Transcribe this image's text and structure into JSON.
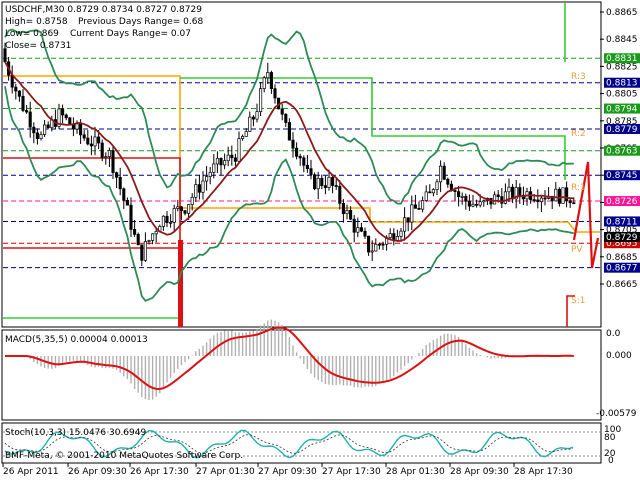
{
  "header": {
    "symbol_line": "USDCHF,M30  0.8729 0.8734 0.8727 0.8729",
    "high_line": "High= 0.8758",
    "prev_range_line": "Previous Days Range= 0.68",
    "low_line": "Low= 0.869",
    "cur_range_line": "Current Days Range= 0.07",
    "close_line": "Close= 0.8731"
  },
  "price_axis": {
    "ticks": [
      "0.8865",
      "0.8845",
      "0.8825",
      "0.8805",
      "0.8785",
      "0.8765",
      "0.8745",
      "0.8725",
      "0.8705",
      "0.8685",
      "0.8665"
    ],
    "current_price": "0.8729"
  },
  "level_tags": [
    {
      "label": "0.8831",
      "price": 0.8831,
      "color": "#1a9a1a"
    },
    {
      "label": "0.8813",
      "price": 0.8813,
      "color": "#00008b"
    },
    {
      "label": "0.8794",
      "price": 0.8794,
      "color": "#1a9a1a"
    },
    {
      "label": "0.8779",
      "price": 0.8779,
      "color": "#00008b"
    },
    {
      "label": "0.8763",
      "price": 0.8763,
      "color": "#1a9a1a"
    },
    {
      "label": "0.8745",
      "price": 0.8745,
      "color": "#00008b"
    },
    {
      "label": "0.8726",
      "price": 0.8726,
      "color": "#ff1493"
    },
    {
      "label": "0.8711",
      "price": 0.8711,
      "color": "#00008b"
    },
    {
      "label": "0.8695",
      "price": 0.8695,
      "color": "#cc0000"
    },
    {
      "label": "0.8677",
      "price": 0.8677,
      "color": "#00008b"
    }
  ],
  "pivot_labels": [
    "R:3",
    "R:2",
    "R:1",
    "PV",
    "S:1"
  ],
  "macd": {
    "title": "MACD(5,35,5) 0.00004 0.00013",
    "ticks": [
      "0.0",
      "0.000",
      "-0.00579"
    ]
  },
  "stoch": {
    "title": "Stoch(10,3,3) 15.0476 30.6949",
    "ticks": [
      "100",
      "80",
      "20",
      "0"
    ]
  },
  "copyright": "BMF-Meta, © 2001-2010 MetaQuotes Software Corp.",
  "time_axis": [
    "26 Apr 2011",
    "26 Apr 09:30",
    "26 Apr 17:30",
    "27 Apr 01:30",
    "27 Apr 09:30",
    "27 Apr 17:30",
    "28 Apr 01:30",
    "28 Apr 09:30",
    "28 Apr 17:30"
  ],
  "colors": {
    "candles": "#000000",
    "ma": "#8b1a1a",
    "bands": "#2e8b57",
    "pivot_orange": "#ffa500",
    "pivot_green": "#32cd32",
    "signal": "#dd1111"
  }
}
